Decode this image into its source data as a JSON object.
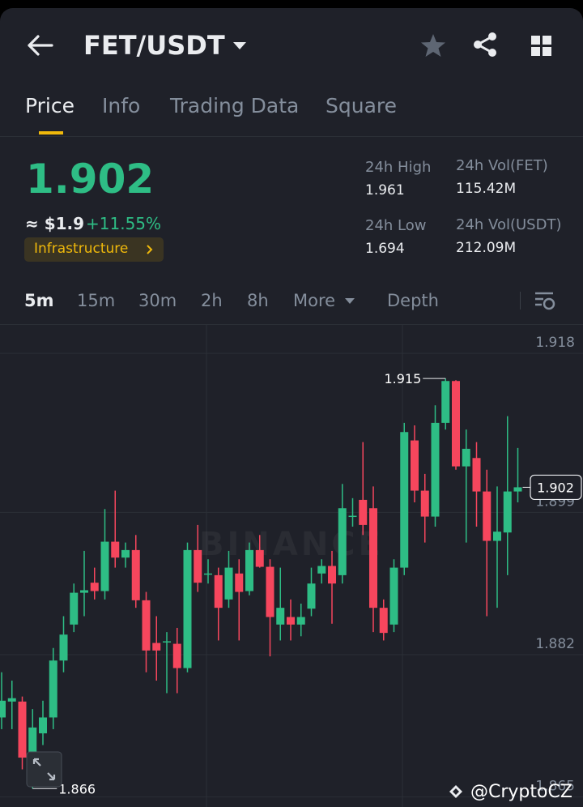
{
  "header": {
    "pair": "FET/USDT"
  },
  "tabs": [
    "Price",
    "Info",
    "Trading Data",
    "Square"
  ],
  "price": {
    "last": "1.902",
    "fiat": "≈ $1.9",
    "change": "+11.55%",
    "sector": "Infrastructure"
  },
  "stats": [
    {
      "label": "24h High",
      "value": "1.961"
    },
    {
      "label": "24h Vol(FET)",
      "value": "115.42M"
    },
    {
      "label": "24h Low",
      "value": "1.694"
    },
    {
      "label": "24h Vol(USDT)",
      "value": "212.09M"
    }
  ],
  "intervals": [
    "5m",
    "15m",
    "30m",
    "2h",
    "8h",
    "More",
    "Depth"
  ],
  "chart_data": {
    "type": "candlestick",
    "watermark": "BINANCE",
    "ylim": [
      1.8638,
      1.9215
    ],
    "yticks": [
      1.918,
      1.899,
      1.882,
      1.865
    ],
    "grid": true,
    "up_color": "#2ebd85",
    "down_color": "#f6465d",
    "open": [
      1.8745,
      1.8764,
      1.8764,
      1.8697,
      1.8726,
      1.8745,
      1.8813,
      1.8856,
      1.8894,
      1.8906,
      1.8896,
      1.8955,
      1.8936,
      1.8945,
      1.8885,
      1.8834,
      1.8836,
      1.8833,
      1.8804,
      1.8945,
      1.8917,
      1.8915,
      1.8886,
      1.8917,
      1.8896,
      1.8945,
      1.8925,
      1.8856,
      1.8865,
      1.8856,
      1.8875,
      1.8917,
      1.8926,
      1.8915,
      1.8986,
      1.9005,
      1.8995,
      1.8876,
      1.8856,
      1.8924,
      1.9076,
      1.9016,
      1.8985,
      1.9097,
      1.9147,
      1.9045,
      1.9055,
      1.9015,
      1.8956,
      1.8966,
      1.9015
    ],
    "high": [
      1.8799,
      1.8789,
      1.877,
      1.8755,
      1.8765,
      1.8828,
      1.8866,
      1.8905,
      1.8944,
      1.8924,
      1.8994,
      1.9016,
      1.8954,
      1.8963,
      1.8895,
      1.8866,
      1.8847,
      1.8852,
      1.8954,
      1.8975,
      1.8934,
      1.8924,
      1.8944,
      1.8934,
      1.8954,
      1.8963,
      1.8934,
      1.8924,
      1.8886,
      1.8881,
      1.8924,
      1.8934,
      1.8944,
      1.9024,
      1.9007,
      1.9074,
      1.9021,
      1.8886,
      1.8934,
      1.9097,
      1.9094,
      1.9036,
      1.9118,
      1.915,
      1.9148,
      1.9089,
      1.9074,
      1.9041,
      1.9021,
      1.9105,
      1.9067
    ],
    "low": [
      1.8731,
      1.8731,
      1.8683,
      1.866,
      1.8712,
      1.8731,
      1.8799,
      1.8847,
      1.8866,
      1.8886,
      1.8886,
      1.8924,
      1.8924,
      1.8876,
      1.8799,
      1.8789,
      1.8774,
      1.8774,
      1.8799,
      1.8895,
      1.8905,
      1.8837,
      1.8876,
      1.8837,
      1.8891,
      1.8924,
      1.8818,
      1.8837,
      1.8837,
      1.8842,
      1.8866,
      1.8905,
      1.8857,
      1.8905,
      1.8973,
      1.8963,
      1.8847,
      1.8837,
      1.8847,
      1.8915,
      1.9002,
      1.8954,
      1.8973,
      1.9089,
      1.9041,
      1.8954,
      1.8973,
      1.8866,
      1.8876,
      1.8915,
      1.9002
    ],
    "close": [
      1.8765,
      1.8768,
      1.8697,
      1.8733,
      1.8745,
      1.8813,
      1.8844,
      1.8894,
      1.8897,
      1.8896,
      1.8955,
      1.8936,
      1.8945,
      1.8885,
      1.8825,
      1.8825,
      1.8836,
      1.8804,
      1.8945,
      1.8906,
      1.8917,
      1.8876,
      1.8924,
      1.8895,
      1.8945,
      1.8925,
      1.8865,
      1.8876,
      1.8856,
      1.8865,
      1.8905,
      1.8926,
      1.8905,
      1.8995,
      1.8986,
      1.8975,
      1.8876,
      1.8846,
      1.8924,
      1.9086,
      1.9016,
      1.8985,
      1.9097,
      1.9147,
      1.9045,
      1.9066,
      1.9015,
      1.8956,
      1.8967,
      1.9015,
      1.902
    ],
    "annotations": {
      "high": 1.915,
      "low": 1.866,
      "last": 1.902
    }
  },
  "credit": "@CryptoCZ"
}
